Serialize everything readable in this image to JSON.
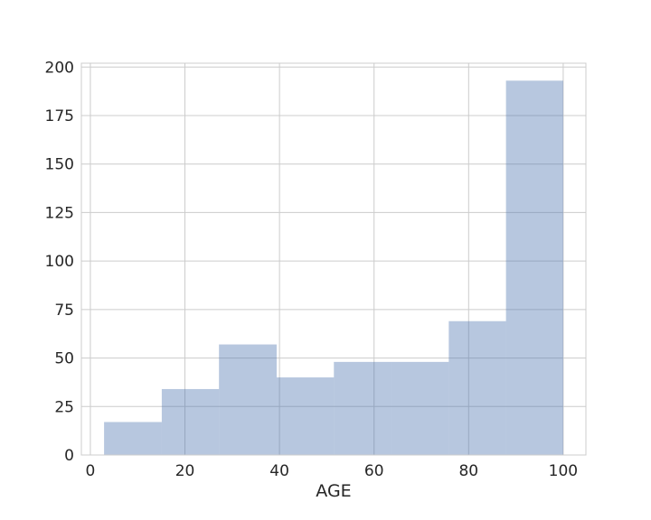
{
  "chart_data": {
    "type": "bar",
    "subtype": "histogram",
    "title": "",
    "xlabel": "AGE",
    "ylabel": "",
    "bins": [
      {
        "start": 2.9,
        "end": 15.1,
        "count": 17
      },
      {
        "start": 15.1,
        "end": 27.2,
        "count": 34
      },
      {
        "start": 27.2,
        "end": 39.4,
        "count": 57
      },
      {
        "start": 39.4,
        "end": 51.5,
        "count": 40
      },
      {
        "start": 51.5,
        "end": 63.7,
        "count": 48
      },
      {
        "start": 63.7,
        "end": 75.8,
        "count": 48
      },
      {
        "start": 75.8,
        "end": 87.9,
        "count": 69
      },
      {
        "start": 87.9,
        "end": 100.0,
        "count": 193
      }
    ],
    "xlim": [
      -1.9,
      104.8
    ],
    "ylim": [
      0,
      202
    ],
    "xticks": [
      0,
      20,
      40,
      60,
      80,
      100
    ],
    "yticks": [
      0,
      25,
      50,
      75,
      100,
      125,
      150,
      175,
      200
    ],
    "grid": true,
    "bar_color": "#4c72b0",
    "bar_opacity": 0.4
  }
}
